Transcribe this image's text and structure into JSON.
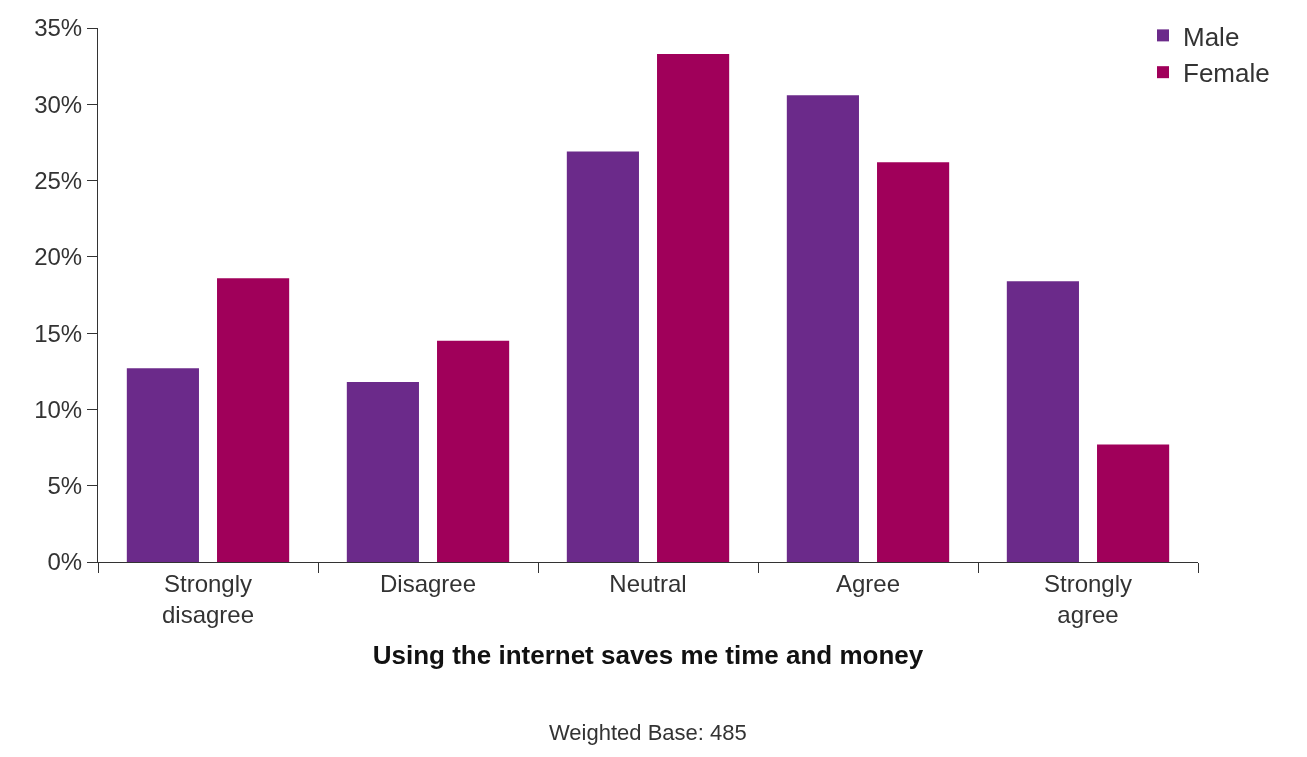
{
  "chart_data": {
    "type": "bar",
    "xlabel": "Using the internet saves me time and money",
    "categories": [
      "Strongly disagree",
      "Disagree",
      "Neutral",
      "Agree",
      "Strongly agree"
    ],
    "series": [
      {
        "name": "Male",
        "color": "#6b2a8a",
        "values": [
          12.7,
          11.8,
          26.9,
          30.6,
          18.4
        ]
      },
      {
        "name": "Female",
        "color": "#a0005a",
        "values": [
          18.6,
          14.5,
          33.3,
          26.2,
          7.7
        ]
      }
    ],
    "ylim": [
      0,
      35
    ],
    "yticks": [
      {
        "value": 0,
        "label": "0%"
      },
      {
        "value": 5,
        "label": "5%"
      },
      {
        "value": 10,
        "label": "10%"
      },
      {
        "value": 15,
        "label": "15%"
      },
      {
        "value": 20,
        "label": "20%"
      },
      {
        "value": 25,
        "label": "25%"
      },
      {
        "value": 30,
        "label": "30%"
      },
      {
        "value": 35,
        "label": "35%"
      }
    ],
    "annotations": [
      "Weighted Base: 485"
    ],
    "legend": "top right"
  }
}
